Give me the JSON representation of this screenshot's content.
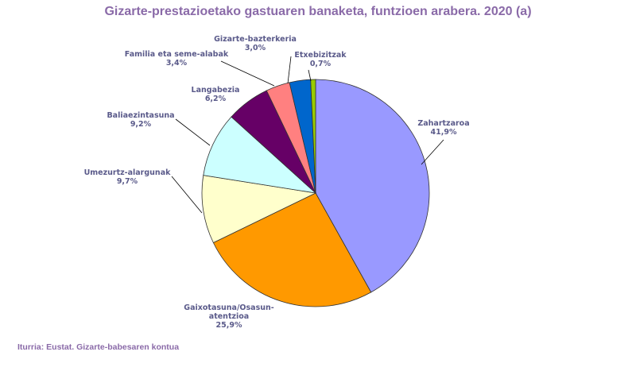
{
  "chart_data": {
    "type": "pie",
    "title": "Gizarte-prestazioetako gastuaren banaketa, funtzioen arabera. 2020 (a)",
    "source": "Iturria: Eustat. Gizarte-babesaren kontua",
    "slices": [
      {
        "label": "Zahartzaroa",
        "value": 41.9,
        "value_label": "41,9%",
        "color": "#9999ff"
      },
      {
        "label": "Gaixotasuna/Osasun-atentzioa",
        "label_lines": [
          "Gaixotasuna/Osasun-",
          "atentzioa"
        ],
        "value": 25.9,
        "value_label": "25,9%",
        "color": "#ff9900"
      },
      {
        "label": "Umezurtz-alargunak",
        "value": 9.7,
        "value_label": "9,7%",
        "color": "#ffffcc"
      },
      {
        "label": "Baliaezintasuna",
        "value": 9.2,
        "value_label": "9,2%",
        "color": "#ccffff"
      },
      {
        "label": "Langabezia",
        "value": 6.2,
        "value_label": "6,2%",
        "color": "#660066"
      },
      {
        "label": "Familia eta seme-alabak",
        "value": 3.4,
        "value_label": "3,4%",
        "color": "#ff8080"
      },
      {
        "label": "Gizarte-bazterkeria",
        "value": 3.0,
        "value_label": "3,0%",
        "color": "#0066cc"
      },
      {
        "label": "Etxebizitzak",
        "value": 0.7,
        "value_label": "0,7%",
        "color": "#99cc00"
      }
    ],
    "label_color": "#5a5a8a",
    "title_color": "#8a6aa8"
  }
}
